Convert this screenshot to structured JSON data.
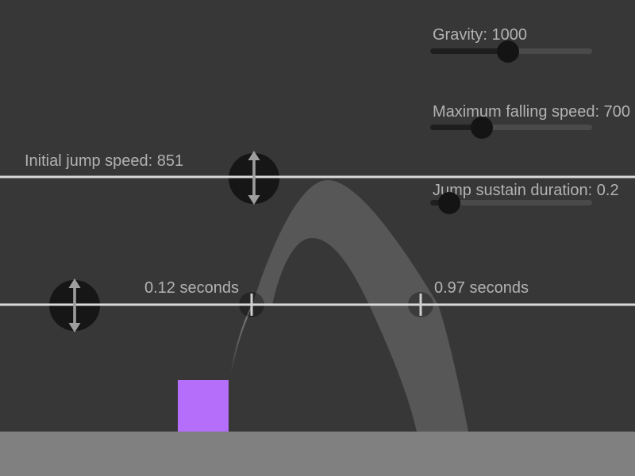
{
  "labels": {
    "initial_jump_speed": "Initial jump speed: 851",
    "first_crossing_time": "0.12 seconds",
    "second_crossing_time": "0.97 seconds"
  },
  "sliders": [
    {
      "label": "Gravity: 1000",
      "value_pct": 48
    },
    {
      "label": "Maximum falling speed: 700",
      "value_pct": 32
    },
    {
      "label": "Jump sustain duration: 0.2",
      "value_pct": 12
    }
  ],
  "scene": {
    "background_color": "#373737",
    "ground_color": "#808080",
    "guide_line_color": "#d9d9d9",
    "trajectory_band_color": "#575757",
    "trajectory_trail_color": "#8c8c8c",
    "player_box_color": "#b46efa",
    "handle_circle_color": "#161616",
    "handle_arrow_color": "#9e9e9e",
    "time_marker_circle_color": "rgba(0,0,0,0.32)",
    "time_marker_tick_color": "#cfcfcf"
  }
}
